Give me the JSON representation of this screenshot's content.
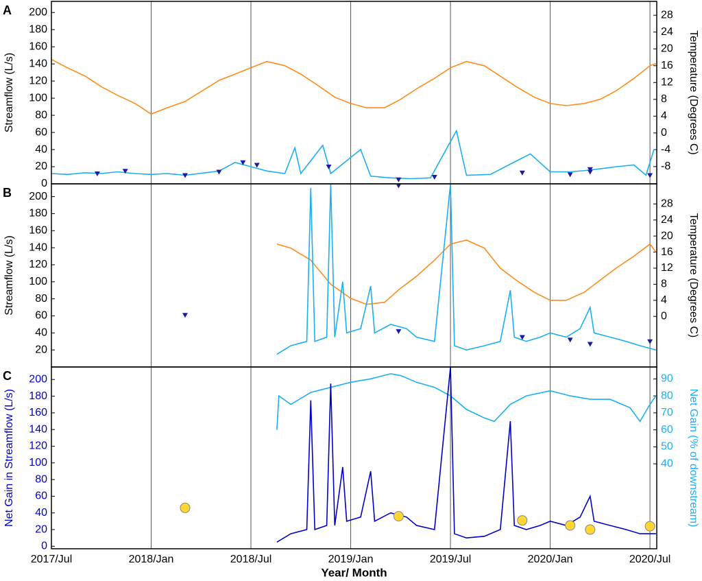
{
  "chart_data": [
    {
      "type": "line",
      "label": "A",
      "ylabel": "Streamflow (L/s)",
      "y2label": "Temperature (Degrees C)",
      "xlim": [
        2017.5,
        2020.534
      ],
      "xticks": [
        2017.5,
        2018,
        2018.5,
        2019,
        2019.5,
        2020,
        2020.5
      ],
      "grid": true,
      "ylim": [
        0,
        213
      ],
      "yticks": [
        0,
        20,
        40,
        60,
        80,
        100,
        120,
        140,
        160,
        180,
        200
      ],
      "y2lim": [
        -12.1,
        31.3
      ],
      "y2ticks": [
        -8,
        -4,
        0,
        4,
        8,
        12,
        16,
        20,
        24,
        28
      ],
      "series": [
        {
          "color": "#ff8c1a",
          "axis": "y2",
          "marker": "none",
          "x": [
            2017.5,
            2017.58,
            2017.67,
            2017.75,
            2017.83,
            2017.92,
            2018.0,
            2018.08,
            2018.17,
            2018.34,
            2018.42,
            2018.5,
            2018.58,
            2018.67,
            2018.75,
            2018.83,
            2018.92,
            2019.0,
            2019.08,
            2019.17,
            2019.25,
            2019.33,
            2019.42,
            2019.5,
            2019.58,
            2019.67,
            2019.75,
            2019.83,
            2019.92,
            2020.0,
            2020.08,
            2020.17,
            2020.25,
            2020.33,
            2020.42,
            2020.5,
            2020.53
          ],
          "values": [
            17.5,
            15.5,
            13.5,
            11,
            9,
            7,
            4.5,
            6,
            7.5,
            12.5,
            14,
            15.5,
            17,
            16,
            14,
            11.5,
            8.5,
            7,
            6,
            6,
            8,
            10.5,
            13,
            15.5,
            17,
            16,
            13.5,
            11,
            8.5,
            7,
            6.5,
            7,
            8,
            10,
            13,
            16,
            16.5
          ]
        },
        {
          "color": "#1ab0f0",
          "axis": "y",
          "marker": "none",
          "x": [
            2017.5,
            2017.58,
            2017.67,
            2017.75,
            2017.83,
            2017.92,
            2018.0,
            2018.08,
            2018.17,
            2018.34,
            2018.42,
            2018.5,
            2018.58,
            2018.67,
            2018.72,
            2018.75,
            2018.86,
            2018.9,
            2019.05,
            2019.1,
            2019.2,
            2019.3,
            2019.4,
            2019.53,
            2019.58,
            2019.7,
            2019.9,
            2020.0,
            2020.1,
            2020.2,
            2020.33,
            2020.42,
            2020.48,
            2020.52,
            2020.53
          ],
          "values": [
            12,
            11,
            13,
            12,
            14,
            12,
            11,
            12,
            10,
            15,
            25,
            20,
            15,
            12,
            42,
            12,
            45,
            12,
            40,
            9,
            7,
            6,
            7,
            62,
            10,
            11,
            35,
            14,
            14,
            16,
            20,
            22,
            10,
            40,
            40
          ]
        },
        {
          "color": "#1a1aa8",
          "axis": "y",
          "marker": "triangle",
          "x": [
            2017.73,
            2017.87,
            2018.17,
            2018.34,
            2018.46,
            2018.53,
            2018.89,
            2019.24,
            2019.24,
            2019.42,
            2019.86,
            2020.1,
            2020.2,
            2020.2,
            2020.5
          ],
          "values": [
            12,
            15,
            10,
            14,
            25,
            22,
            20,
            5,
            -2,
            8,
            13,
            11,
            14,
            17,
            10
          ]
        }
      ]
    },
    {
      "type": "line",
      "label": "B",
      "ylabel": "Streamflow (L/s)",
      "y2label": "Temperature (Degrees C)",
      "xlim": [
        2017.5,
        2020.534
      ],
      "xticks": [
        2017.5,
        2018,
        2018.5,
        2019,
        2019.5,
        2020,
        2020.5
      ],
      "grid": true,
      "ylim": [
        0,
        215
      ],
      "yticks": [
        20,
        40,
        60,
        80,
        100,
        120,
        140,
        160,
        180,
        200
      ],
      "y2lim": [
        -12.6,
        33
      ],
      "y2ticks": [
        0,
        4,
        8,
        12,
        16,
        20,
        24,
        28
      ],
      "series": [
        {
          "color": "#ff8c1a",
          "axis": "y2",
          "marker": "none",
          "x": [
            2018.63,
            2018.7,
            2018.8,
            2018.9,
            2019.0,
            2019.08,
            2019.17,
            2019.25,
            2019.33,
            2019.42,
            2019.5,
            2019.58,
            2019.67,
            2019.75,
            2019.83,
            2019.92,
            2020.0,
            2020.08,
            2020.17,
            2020.25,
            2020.33,
            2020.42,
            2020.5,
            2020.53
          ],
          "values": [
            18,
            17,
            14,
            8,
            4.5,
            3,
            3.5,
            7,
            10,
            14,
            18,
            19,
            17,
            12,
            9,
            6,
            4,
            4,
            6,
            9,
            12,
            15,
            18,
            16
          ]
        },
        {
          "color": "#1ab0f0",
          "axis": "y",
          "marker": "none",
          "x": [
            2018.63,
            2018.7,
            2018.78,
            2018.8,
            2018.82,
            2018.88,
            2018.9,
            2018.92,
            2018.96,
            2018.98,
            2019.05,
            2019.1,
            2019.12,
            2019.2,
            2019.28,
            2019.33,
            2019.42,
            2019.5,
            2019.52,
            2019.58,
            2019.67,
            2019.75,
            2019.8,
            2019.82,
            2019.88,
            2019.95,
            2020.0,
            2020.08,
            2020.15,
            2020.2,
            2020.22,
            2020.3,
            2020.38,
            2020.45,
            2020.53
          ],
          "values": [
            15,
            25,
            30,
            210,
            30,
            35,
            215,
            35,
            100,
            40,
            45,
            95,
            40,
            50,
            45,
            35,
            30,
            215,
            25,
            20,
            25,
            30,
            90,
            35,
            30,
            35,
            40,
            35,
            45,
            70,
            40,
            35,
            30,
            25,
            20
          ]
        },
        {
          "color": "#1a1aa8",
          "axis": "y",
          "marker": "triangle",
          "x": [
            2018.17,
            2019.24,
            2019.86,
            2020.1,
            2020.2,
            2020.5
          ],
          "values": [
            61,
            42,
            35,
            32,
            27,
            30
          ]
        }
      ]
    },
    {
      "type": "line",
      "label": "C",
      "ylabel": "Net Gain in Streamflow (L/s)",
      "y2label": "Net Gain (% of downstream)",
      "xlabel": "Year/ Month",
      "y_color": "#0000c8",
      "y2_color": "#1ab0f0",
      "xlim": [
        2017.5,
        2020.534
      ],
      "grid": true,
      "xticks": [
        {
          "value": 2017.5,
          "label": "2017/Jul"
        },
        {
          "value": 2018,
          "label": "2018/Jan"
        },
        {
          "value": 2018.5,
          "label": "2018/Jul"
        },
        {
          "value": 2019,
          "label": "2019/Jan"
        },
        {
          "value": 2019.5,
          "label": "2019/Jul"
        },
        {
          "value": 2020,
          "label": "2020/Jan"
        },
        {
          "value": 2020.5,
          "label": "2020/Jul"
        }
      ],
      "ylim": [
        -3,
        215
      ],
      "yticks": [
        0,
        20,
        40,
        60,
        80,
        100,
        120,
        140,
        160,
        180,
        200
      ],
      "y2lim": [
        -10,
        97
      ],
      "y2ticks": [
        40,
        50,
        60,
        70,
        80,
        90
      ],
      "series": [
        {
          "color": "#1ab0f0",
          "axis": "y2",
          "marker": "none",
          "x": [
            2018.63,
            2018.64,
            2018.7,
            2018.8,
            2018.9,
            2019.0,
            2019.1,
            2019.2,
            2019.25,
            2019.33,
            2019.42,
            2019.5,
            2019.58,
            2019.67,
            2019.72,
            2019.8,
            2019.88,
            2020.0,
            2020.1,
            2020.2,
            2020.3,
            2020.4,
            2020.45,
            2020.5,
            2020.53
          ],
          "values": [
            60,
            80,
            75,
            82,
            85,
            88,
            90,
            93,
            92,
            88,
            85,
            80,
            72,
            67,
            65,
            75,
            80,
            83,
            80,
            78,
            78,
            73,
            65,
            75,
            80
          ]
        },
        {
          "color": "#0000c8",
          "axis": "y",
          "marker": "none",
          "x": [
            2018.63,
            2018.7,
            2018.78,
            2018.8,
            2018.82,
            2018.88,
            2018.9,
            2018.92,
            2018.96,
            2018.98,
            2019.05,
            2019.1,
            2019.12,
            2019.2,
            2019.28,
            2019.33,
            2019.42,
            2019.5,
            2019.52,
            2019.58,
            2019.67,
            2019.75,
            2019.8,
            2019.82,
            2019.88,
            2019.95,
            2020.0,
            2020.08,
            2020.15,
            2020.2,
            2020.22,
            2020.3,
            2020.38,
            2020.45,
            2020.53
          ],
          "values": [
            5,
            15,
            20,
            175,
            20,
            25,
            195,
            25,
            95,
            30,
            35,
            90,
            30,
            40,
            35,
            25,
            20,
            215,
            15,
            10,
            12,
            20,
            150,
            25,
            20,
            25,
            30,
            25,
            35,
            60,
            30,
            25,
            20,
            15,
            15
          ]
        },
        {
          "color": "#ffd633",
          "axis": "y",
          "marker": "circle",
          "x": [
            2018.17,
            2019.24,
            2019.86,
            2020.1,
            2020.2,
            2020.5
          ],
          "values": [
            46,
            36,
            31,
            25,
            20,
            24
          ]
        }
      ]
    }
  ]
}
